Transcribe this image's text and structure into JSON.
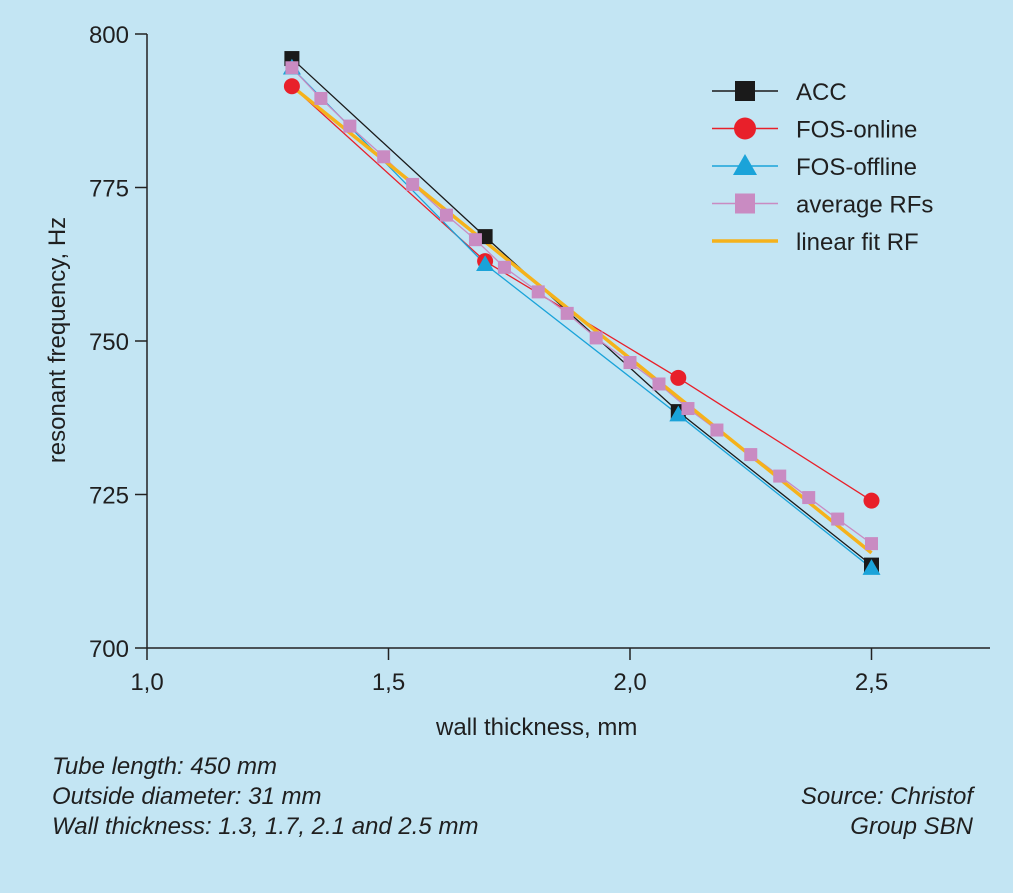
{
  "chart_data": {
    "type": "line",
    "xlabel": "wall thickness, mm",
    "ylabel": "resonant frequency, Hz",
    "xlim": [
      1.0,
      2.75
    ],
    "ylim": [
      700,
      800
    ],
    "x_ticks": [
      "1,0",
      "1,5",
      "2,0",
      "2,5"
    ],
    "y_ticks": [
      "700",
      "725",
      "750",
      "775",
      "800"
    ],
    "legend_position": "top-right",
    "series": [
      {
        "name": "ACC",
        "marker": "square",
        "color": "#1a1a1a",
        "x": [
          1.3,
          1.7,
          2.1,
          2.5
        ],
        "y": [
          796,
          767,
          738.5,
          713.5
        ]
      },
      {
        "name": "FOS-online",
        "marker": "circle",
        "color": "#e8202a",
        "x": [
          1.3,
          1.7,
          2.1,
          2.5
        ],
        "y": [
          791.5,
          763,
          744,
          724
        ]
      },
      {
        "name": "FOS-offline",
        "marker": "triangle",
        "color": "#1aa3d9",
        "x": [
          1.3,
          1.7,
          2.1,
          2.5
        ],
        "y": [
          794.5,
          762.5,
          738,
          713
        ]
      },
      {
        "name": "average RFs",
        "marker": "square",
        "color": "#c98bc2",
        "x": [
          1.3,
          1.36,
          1.42,
          1.49,
          1.55,
          1.62,
          1.68,
          1.74,
          1.81,
          1.87,
          1.93,
          2.0,
          2.06,
          2.12,
          2.18,
          2.25,
          2.31,
          2.37,
          2.43,
          2.5
        ],
        "y": [
          794.5,
          789.5,
          785,
          780,
          775.5,
          770.5,
          766.5,
          762,
          758,
          754.5,
          750.5,
          746.5,
          743,
          739,
          735.5,
          731.5,
          728,
          724.5,
          721,
          717
        ]
      },
      {
        "name": "linear fit RF",
        "marker": "line",
        "color": "#f5b21b",
        "x": [
          1.3,
          2.5
        ],
        "y": [
          791.5,
          715.5
        ]
      }
    ]
  },
  "notes": {
    "tube_length": "Tube length: 450 mm",
    "outside_diameter": "Outside diameter: 31 mm",
    "wall_thickness": "Wall thickness: 1.3, 1.7, 2.1 and 2.5 mm"
  },
  "source": {
    "line1": "Source: Christof",
    "line2": "Group SBN"
  }
}
